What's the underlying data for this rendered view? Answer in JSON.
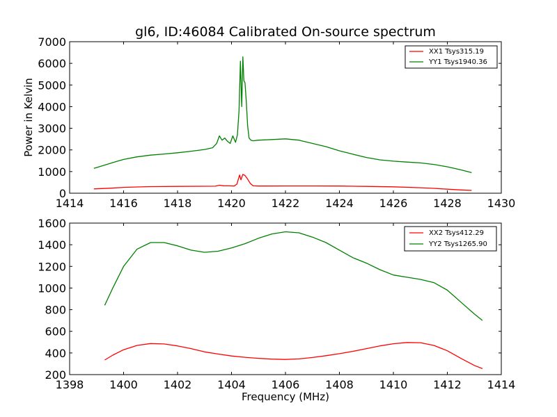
{
  "chart_data": [
    {
      "type": "line",
      "title": "gl6, ID:46084 Calibrated On-source spectrum",
      "xlabel": "",
      "ylabel": "Power in Kelvin",
      "xlim": [
        1414,
        1430
      ],
      "ylim": [
        0,
        7000
      ],
      "xticks": [
        "1414",
        "1416",
        "1418",
        "1420",
        "1422",
        "1424",
        "1426",
        "1428",
        "1430"
      ],
      "yticks": [
        "0",
        "1000",
        "2000",
        "3000",
        "4000",
        "5000",
        "6000",
        "7000"
      ],
      "grid": false,
      "legend_position": "top-right",
      "series": [
        {
          "name": "XX1 Tsys315.19",
          "color": "#ff0000",
          "x": [
            1414.9,
            1415.5,
            1416.0,
            1416.5,
            1417.0,
            1418.0,
            1419.0,
            1419.4,
            1419.55,
            1419.7,
            1419.9,
            1420.1,
            1420.2,
            1420.3,
            1420.35,
            1420.42,
            1420.5,
            1420.6,
            1420.7,
            1420.8,
            1421.0,
            1422.0,
            1423.0,
            1424.0,
            1425.0,
            1426.0,
            1427.0,
            1427.5,
            1428.0,
            1428.5,
            1428.9
          ],
          "y": [
            200,
            230,
            270,
            290,
            305,
            315,
            320,
            325,
            370,
            345,
            340,
            330,
            420,
            840,
            620,
            870,
            820,
            650,
            450,
            340,
            330,
            335,
            335,
            330,
            315,
            295,
            255,
            225,
            185,
            150,
            130
          ]
        },
        {
          "name": "YY1 Tsys1940.36",
          "color": "#008000",
          "x": [
            1414.9,
            1415.3,
            1415.7,
            1416.0,
            1416.5,
            1417.0,
            1417.5,
            1418.0,
            1418.5,
            1419.0,
            1419.3,
            1419.45,
            1419.55,
            1419.65,
            1419.75,
            1419.85,
            1419.95,
            1420.05,
            1420.15,
            1420.22,
            1420.28,
            1420.33,
            1420.38,
            1420.42,
            1420.46,
            1420.5,
            1420.55,
            1420.6,
            1420.65,
            1420.72,
            1420.8,
            1421.0,
            1421.5,
            1422.0,
            1422.5,
            1423.0,
            1423.5,
            1424.0,
            1424.5,
            1425.0,
            1425.5,
            1426.0,
            1426.5,
            1427.0,
            1427.5,
            1428.0,
            1428.5,
            1428.9
          ],
          "y": [
            1150,
            1300,
            1450,
            1560,
            1680,
            1760,
            1810,
            1870,
            1940,
            2020,
            2100,
            2300,
            2650,
            2450,
            2550,
            2400,
            2300,
            2650,
            2350,
            2700,
            3800,
            6100,
            4000,
            6300,
            5200,
            5100,
            4200,
            3100,
            2550,
            2450,
            2420,
            2450,
            2480,
            2510,
            2450,
            2300,
            2150,
            1960,
            1800,
            1650,
            1540,
            1480,
            1440,
            1400,
            1330,
            1220,
            1080,
            950
          ]
        }
      ]
    },
    {
      "type": "line",
      "title": "",
      "xlabel": "Frequency (MHz)",
      "ylabel": "",
      "xlim": [
        1398,
        1414
      ],
      "ylim": [
        200,
        1600
      ],
      "xticks": [
        "1398",
        "1400",
        "1402",
        "1404",
        "1406",
        "1408",
        "1410",
        "1412",
        "1414"
      ],
      "yticks": [
        "200",
        "400",
        "600",
        "800",
        "1000",
        "1200",
        "1400",
        "1600"
      ],
      "grid": false,
      "legend_position": "top-right",
      "series": [
        {
          "name": "XX2 Tsys412.29",
          "color": "#ff0000",
          "x": [
            1399.3,
            1399.6,
            1400.0,
            1400.5,
            1401.0,
            1401.5,
            1402.0,
            1402.5,
            1403.0,
            1403.5,
            1404.0,
            1404.5,
            1405.0,
            1405.5,
            1406.0,
            1406.5,
            1407.0,
            1407.5,
            1408.0,
            1408.5,
            1409.0,
            1409.5,
            1410.0,
            1410.5,
            1411.0,
            1411.5,
            1412.0,
            1412.5,
            1413.0,
            1413.3
          ],
          "y": [
            335,
            380,
            430,
            470,
            487,
            483,
            465,
            440,
            410,
            390,
            372,
            360,
            350,
            343,
            340,
            345,
            358,
            375,
            393,
            415,
            440,
            465,
            485,
            497,
            495,
            470,
            420,
            350,
            285,
            255
          ]
        },
        {
          "name": "YY2 Tsys1265.90",
          "color": "#008000",
          "x": [
            1399.3,
            1399.6,
            1400.0,
            1400.5,
            1401.0,
            1401.5,
            1402.0,
            1402.5,
            1403.0,
            1403.5,
            1404.0,
            1404.5,
            1405.0,
            1405.5,
            1406.0,
            1406.5,
            1407.0,
            1407.5,
            1408.0,
            1408.5,
            1409.0,
            1409.5,
            1410.0,
            1410.5,
            1411.0,
            1411.5,
            1412.0,
            1412.5,
            1413.0,
            1413.3
          ],
          "y": [
            840,
            1000,
            1200,
            1360,
            1420,
            1420,
            1390,
            1350,
            1330,
            1340,
            1370,
            1410,
            1460,
            1500,
            1520,
            1510,
            1470,
            1420,
            1350,
            1280,
            1230,
            1170,
            1120,
            1100,
            1080,
            1050,
            980,
            870,
            760,
            700
          ]
        }
      ]
    }
  ]
}
